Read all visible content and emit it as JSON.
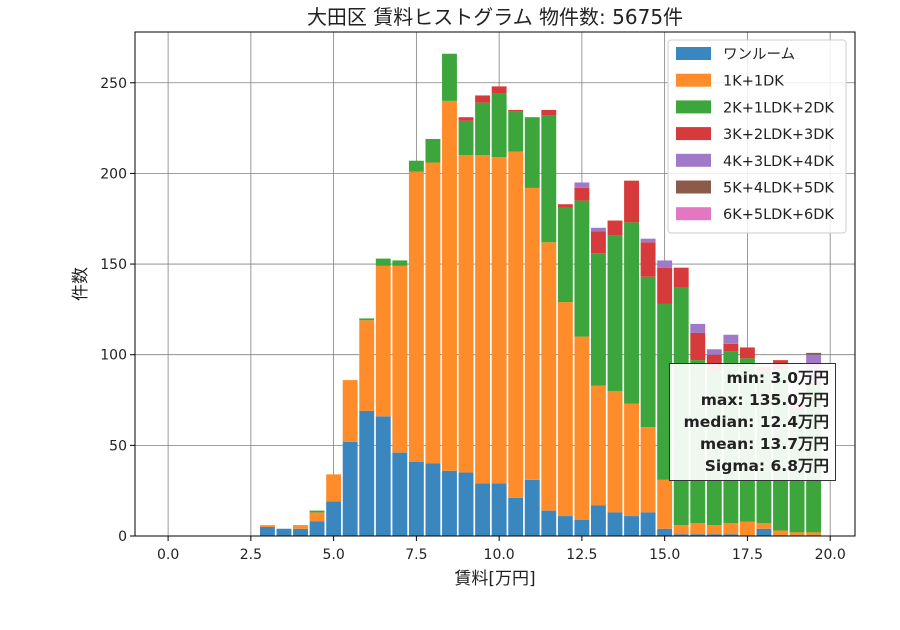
{
  "chart_data": {
    "type": "bar",
    "stacked": true,
    "title": "大田区 賃料ヒストグラム 物件数: 5675件",
    "xlabel": "賃料[万円]",
    "ylabel": "件数",
    "xlim": [
      -1.0,
      20.75
    ],
    "ylim": [
      0,
      278
    ],
    "xticks": [
      "0.0",
      "2.5",
      "5.0",
      "7.5",
      "10.0",
      "12.5",
      "15.0",
      "17.5",
      "20.0"
    ],
    "xtick_values": [
      0,
      2.5,
      5,
      7.5,
      10,
      12.5,
      15,
      17.5,
      20
    ],
    "yticks": [
      "0",
      "50",
      "100",
      "150",
      "200",
      "250"
    ],
    "ytick_values": [
      0,
      50,
      100,
      150,
      200,
      250
    ],
    "grid": true,
    "legend_position": "top-right",
    "bin_width": 0.5,
    "x": [
      3.0,
      3.5,
      4.0,
      4.5,
      5.0,
      5.5,
      6.0,
      6.5,
      7.0,
      7.5,
      8.0,
      8.5,
      9.0,
      9.5,
      10.0,
      10.5,
      11.0,
      11.5,
      12.0,
      12.5,
      13.0,
      13.5,
      14.0,
      14.5,
      15.0,
      15.5,
      16.0,
      16.5,
      17.0,
      17.5,
      18.0,
      18.5,
      19.0,
      19.5
    ],
    "series": [
      {
        "name": "ワンルーム",
        "color": "#3a87c0",
        "values": [
          5,
          4,
          4,
          8,
          19,
          52,
          69,
          66,
          46,
          41,
          40,
          36,
          35,
          29,
          29,
          21,
          31,
          14,
          11,
          9,
          17,
          13,
          11,
          13,
          4,
          1,
          1,
          1,
          1,
          0,
          4,
          0,
          0,
          0
        ]
      },
      {
        "name": "1K+1DK",
        "color": "#ff8c2a",
        "values": [
          1,
          0,
          2,
          5,
          15,
          34,
          50,
          83,
          103,
          160,
          166,
          204,
          175,
          181,
          180,
          191,
          161,
          148,
          118,
          101,
          66,
          67,
          62,
          47,
          27,
          5,
          6,
          5,
          6,
          8,
          3,
          3,
          2,
          2
        ]
      },
      {
        "name": "2K+1LDK+2DK",
        "color": "#3ca53c",
        "values": [
          0,
          0,
          0,
          1,
          0,
          0,
          1,
          4,
          3,
          6,
          13,
          26,
          19,
          29,
          35,
          22,
          39,
          70,
          52,
          75,
          73,
          86,
          100,
          83,
          97,
          131,
          90,
          85,
          95,
          90,
          84,
          89,
          67,
          81
        ]
      },
      {
        "name": "3K+2LDK+3DK",
        "color": "#d63a3a",
        "values": [
          0,
          0,
          0,
          0,
          0,
          0,
          0,
          0,
          0,
          0,
          0,
          0,
          2,
          4,
          4,
          1,
          0,
          3,
          2,
          7,
          12,
          8,
          23,
          19,
          20,
          11,
          15,
          9,
          4,
          6,
          2,
          5,
          4,
          2
        ]
      },
      {
        "name": "4K+3LDK+4DK",
        "color": "#a07ac8",
        "values": [
          0,
          0,
          0,
          0,
          0,
          0,
          0,
          0,
          0,
          0,
          0,
          0,
          0,
          0,
          0,
          0,
          0,
          0,
          0,
          3,
          2,
          0,
          0,
          2,
          4,
          0,
          5,
          3,
          5,
          0,
          0,
          0,
          0,
          15
        ]
      },
      {
        "name": "5K+4LDK+5DK",
        "color": "#8c5a4a",
        "values": [
          0,
          0,
          0,
          0,
          0,
          0,
          0,
          0,
          0,
          0,
          0,
          0,
          0,
          0,
          0,
          0,
          0,
          0,
          0,
          0,
          0,
          0,
          0,
          0,
          0,
          0,
          0,
          0,
          0,
          0,
          0,
          0,
          0,
          1
        ]
      },
      {
        "name": "6K+5LDK+6DK",
        "color": "#e377c2",
        "values": [
          0,
          0,
          0,
          0,
          0,
          0,
          0,
          0,
          0,
          0,
          0,
          0,
          0,
          0,
          0,
          0,
          0,
          0,
          0,
          0,
          0,
          0,
          0,
          0,
          0,
          0,
          0,
          0,
          0,
          0,
          0,
          0,
          0,
          0
        ]
      }
    ]
  },
  "stats": {
    "min": "min: 3.0万円",
    "max": "max: 135.0万円",
    "median": "median: 12.4万円",
    "mean": "mean: 13.7万円",
    "sigma": "Sigma: 6.8万円"
  }
}
